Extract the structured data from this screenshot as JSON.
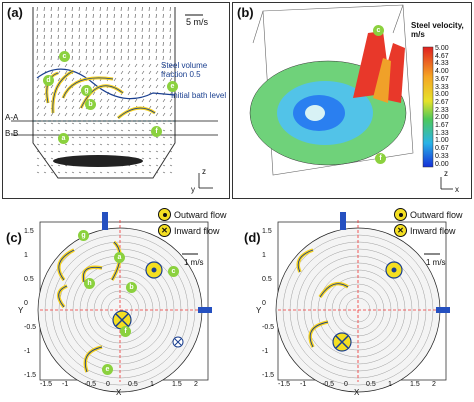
{
  "panels": {
    "a": {
      "label": "(a)",
      "scale_label": "5 m/s",
      "steel_fraction": "Steel volume fraction 0.5",
      "initial_bath": "Initial bath level",
      "section_aa": "A-A",
      "section_bb": "B-B",
      "axis_z": "z",
      "axis_y": "y",
      "markers": [
        "a",
        "b",
        "c",
        "d",
        "e",
        "f",
        "g"
      ]
    },
    "b": {
      "label": "(b)",
      "colorbar_title": "Steel velocity, m/s",
      "colorbar_values": [
        "5.00",
        "4.67",
        "4.33",
        "4.00",
        "3.67",
        "3.33",
        "3.00",
        "2.67",
        "2.33",
        "2.00",
        "1.67",
        "1.33",
        "1.00",
        "0.67",
        "0.33",
        "0.00"
      ],
      "axis_z": "z",
      "axis_x": "x",
      "markers": [
        "c",
        "f"
      ]
    },
    "c": {
      "label": "(c)",
      "legend_out": "Outward flow",
      "legend_in": "Inward flow",
      "scale": "1 m/s",
      "xlabel": "X",
      "ylabel": "Y",
      "xticks": [
        "-1.5",
        "-1",
        "-0.5",
        "0",
        "0.5",
        "1",
        "1.5",
        "2"
      ],
      "yticks": [
        "1.5",
        "1",
        "0.5",
        "0",
        "-0.5",
        "-1",
        "-1.5"
      ],
      "markers": [
        "g",
        "a",
        "h",
        "b",
        "c",
        "f",
        "e"
      ]
    },
    "d": {
      "label": "(d)",
      "legend_out": "Outward flow",
      "legend_in": "Inward flow",
      "scale": "1 m/s",
      "xlabel": "X",
      "ylabel": "Y",
      "xticks": [
        "-1.5",
        "-1",
        "-0.5",
        "0",
        "0.5",
        "1",
        "1.5",
        "2"
      ],
      "yticks": [
        "1.5",
        "1",
        "0.5",
        "0",
        "-0.5",
        "-1",
        "-1.5"
      ]
    }
  }
}
